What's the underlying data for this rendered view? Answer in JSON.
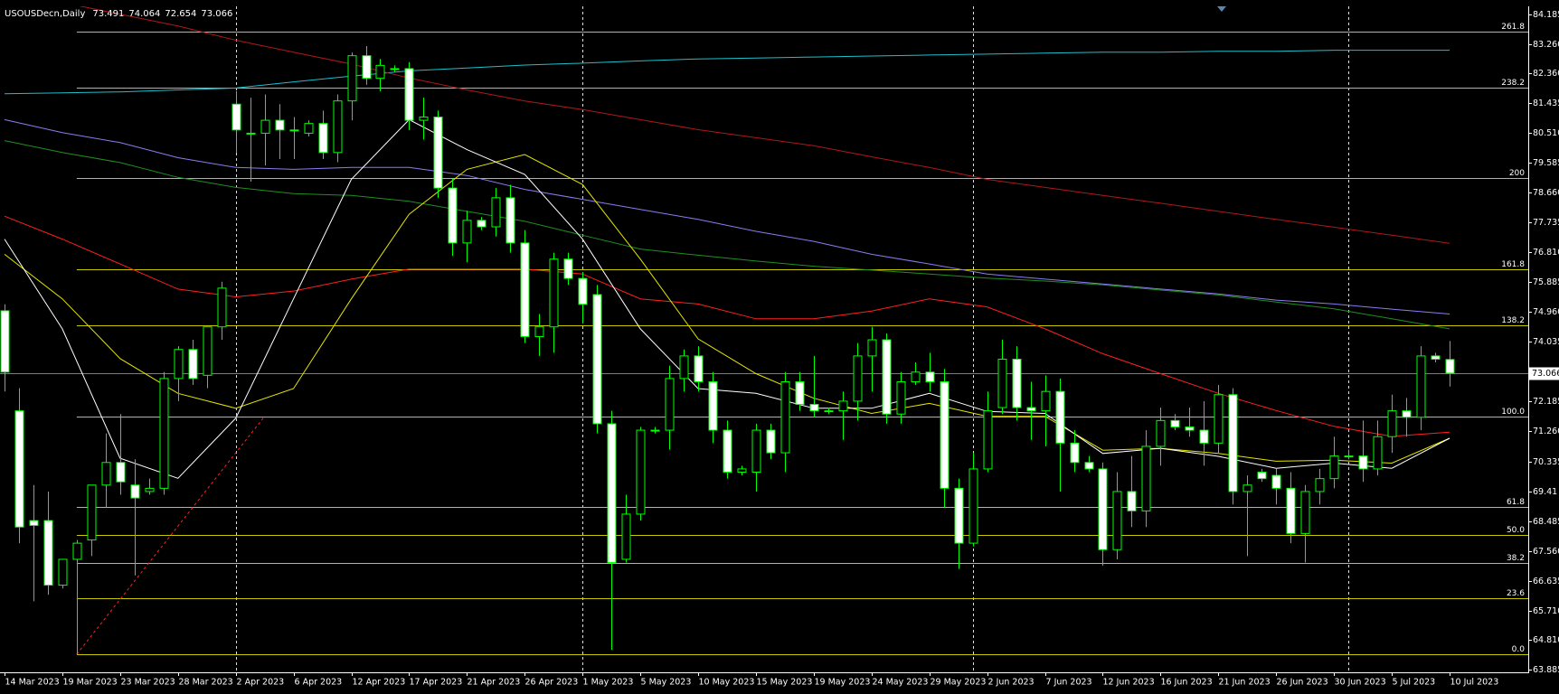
{
  "chart_data": {
    "type": "candlestick",
    "title": "USOUSDecn,Daily",
    "ylim": [
      63.8,
      84.43
    ],
    "yticks": [
      84.185,
      {
        "value": 83.26,
        "label": "83.260"
      },
      {
        "value": 82.36,
        "label": "82.360"
      },
      81.435,
      {
        "value": 80.51,
        "label": "80.510"
      },
      79.585,
      {
        "value": 78.66,
        "label": "78.660"
      },
      77.735,
      {
        "value": 76.81,
        "label": "76.810"
      },
      75.885,
      {
        "value": 74.96,
        "label": "74.960"
      },
      74.035,
      72.185,
      {
        "value": 71.26,
        "label": "71.260"
      },
      70.335,
      69.41,
      68.485,
      {
        "value": 67.56,
        "label": "67.560"
      },
      66.635,
      {
        "value": 65.71,
        "label": "65.710"
      },
      {
        "value": 64.81,
        "label": "64.810"
      },
      63.885
    ],
    "categories": [
      "14 Mar 2023",
      null,
      null,
      null,
      "19 Mar 2023",
      null,
      null,
      null,
      "23 Mar 2023",
      null,
      null,
      null,
      "28 Mar 2023",
      null,
      null,
      null,
      "2 Apr 2023",
      null,
      null,
      null,
      "6 Apr 2023",
      null,
      null,
      null,
      "12 Apr 2023",
      null,
      null,
      null,
      "17 Apr 2023",
      null,
      null,
      null,
      "21 Apr 2023",
      null,
      null,
      null,
      "26 Apr 2023",
      null,
      null,
      null,
      "1 May 2023",
      null,
      null,
      null,
      "5 May 2023",
      null,
      null,
      null,
      "10 May 2023",
      null,
      null,
      null,
      "15 May 2023",
      null,
      null,
      null,
      "19 May 2023",
      null,
      null,
      null,
      "24 May 2023",
      null,
      null,
      null,
      "29 May 2023",
      null,
      null,
      null,
      "2 Jun 2023",
      null,
      null,
      null,
      "7 Jun 2023",
      null,
      null,
      null,
      "12 Jun 2023",
      null,
      null,
      null,
      "16 Jun 2023",
      null,
      null,
      null,
      "21 Jun 2023",
      null,
      null,
      null,
      "26 Jun 2023",
      null,
      null,
      null,
      "30 Jun 2023",
      null,
      null,
      null,
      "5 Jul 2023",
      null,
      null,
      null,
      "10 Jul 2023"
    ],
    "open": [
      75.0,
      71.9,
      68.5,
      68.5,
      66.5,
      67.3,
      67.9,
      69.6,
      70.3,
      69.6,
      69.4,
      69.5,
      72.9,
      73.8,
      73.0,
      74.5,
      81.4,
      80.5,
      80.5,
      80.9,
      80.6,
      80.5,
      80.8,
      79.9,
      81.5,
      82.9,
      82.2,
      82.5,
      82.5,
      80.9,
      81.0,
      78.8,
      77.1,
      77.8,
      77.6,
      78.5,
      77.1,
      74.2,
      74.5,
      76.6,
      76.0,
      75.5,
      71.5,
      67.3,
      68.7,
      71.3,
      71.3,
      72.9,
      73.6,
      72.8,
      71.3,
      70.0,
      70.0,
      71.3,
      70.6,
      72.8,
      72.1,
      71.9,
      71.9,
      72.2,
      73.6,
      74.1,
      71.8,
      72.8,
      73.1,
      72.8,
      69.5,
      67.8,
      70.1,
      72.0,
      73.5,
      72.0,
      71.9,
      72.5,
      70.9,
      70.3,
      70.1,
      67.6,
      69.4,
      68.8,
      70.8,
      71.6,
      71.4,
      71.3,
      70.9,
      72.4,
      69.4,
      70.0,
      69.9,
      69.5,
      68.1,
      69.4,
      69.8,
      70.5,
      70.5,
      70.1,
      71.1,
      71.9,
      71.7,
      73.6,
      73.491
    ],
    "high": [
      75.2,
      72.6,
      69.6,
      69.4,
      67.3,
      67.9,
      69.6,
      71.2,
      71.8,
      70.4,
      69.8,
      73.1,
      73.9,
      74.1,
      74.5,
      75.9,
      81.8,
      81.6,
      81.7,
      81.4,
      81.0,
      80.9,
      81.2,
      81.7,
      83.0,
      83.2,
      82.8,
      82.6,
      82.7,
      81.6,
      81.2,
      79.1,
      78.1,
      77.9,
      78.8,
      78.9,
      77.5,
      74.9,
      76.8,
      76.8,
      76.2,
      75.8,
      71.9,
      69.3,
      71.4,
      71.4,
      73.3,
      73.8,
      73.9,
      73.1,
      71.6,
      70.2,
      71.5,
      71.5,
      73.1,
      73.1,
      73.6,
      72.0,
      72.5,
      74.0,
      74.5,
      74.3,
      73.1,
      73.4,
      73.7,
      73.2,
      69.8,
      70.6,
      72.5,
      74.1,
      73.9,
      72.8,
      73.0,
      72.9,
      71.3,
      70.5,
      70.3,
      70.0,
      70.5,
      71.3,
      72.0,
      71.8,
      72.0,
      72.2,
      72.7,
      72.6,
      69.9,
      70.1,
      70.1,
      70.0,
      69.6,
      70.1,
      71.1,
      70.7,
      71.6,
      71.6,
      72.4,
      72.3,
      73.9,
      73.7,
      74.064
    ],
    "low": [
      72.5,
      67.8,
      66.0,
      66.2,
      66.4,
      64.36,
      67.4,
      68.9,
      69.3,
      66.8,
      69.3,
      69.3,
      72.2,
      72.7,
      72.6,
      74.1,
      79.9,
      79.0,
      79.5,
      79.7,
      79.7,
      80.4,
      79.7,
      79.6,
      80.9,
      82.0,
      81.8,
      82.4,
      80.6,
      80.3,
      78.5,
      76.7,
      76.5,
      77.5,
      77.3,
      76.8,
      74.0,
      73.6,
      73.7,
      75.8,
      74.6,
      71.2,
      64.5,
      67.2,
      68.5,
      71.2,
      70.7,
      72.5,
      72.5,
      70.9,
      69.8,
      69.9,
      69.4,
      70.4,
      70.0,
      71.9,
      71.7,
      71.8,
      71.0,
      71.6,
      72.5,
      71.5,
      71.5,
      72.7,
      72.5,
      68.9,
      67.0,
      67.7,
      70.0,
      71.8,
      71.6,
      71.0,
      70.8,
      69.4,
      70.0,
      70.0,
      67.1,
      67.3,
      68.3,
      68.3,
      70.2,
      71.3,
      71.1,
      70.2,
      70.6,
      69.0,
      67.4,
      69.7,
      69.0,
      67.8,
      67.2,
      69.0,
      69.5,
      70.4,
      69.7,
      69.9,
      70.6,
      71.1,
      71.3,
      73.4,
      72.654
    ],
    "close": [
      73.1,
      68.3,
      68.35,
      66.5,
      67.3,
      67.8,
      69.6,
      70.3,
      69.7,
      69.2,
      69.5,
      72.9,
      73.8,
      72.9,
      74.5,
      75.7,
      80.6,
      80.5,
      80.9,
      80.6,
      80.6,
      80.8,
      79.9,
      81.5,
      82.9,
      82.2,
      82.6,
      82.5,
      80.9,
      81.0,
      78.8,
      77.1,
      77.8,
      77.6,
      78.5,
      77.1,
      74.2,
      74.5,
      76.6,
      76.0,
      75.2,
      71.5,
      67.2,
      68.7,
      71.3,
      71.3,
      72.9,
      73.6,
      72.8,
      71.3,
      70.0,
      70.1,
      71.3,
      70.6,
      72.8,
      72.1,
      71.9,
      71.9,
      72.2,
      73.6,
      74.1,
      71.8,
      72.8,
      73.1,
      72.8,
      69.5,
      67.8,
      70.1,
      71.9,
      73.5,
      72.0,
      71.9,
      72.5,
      70.9,
      70.3,
      70.1,
      67.6,
      69.4,
      68.8,
      70.8,
      71.6,
      71.4,
      71.3,
      70.9,
      72.4,
      69.4,
      69.6,
      69.8,
      69.5,
      68.1,
      69.4,
      69.8,
      70.5,
      70.5,
      70.1,
      71.1,
      71.9,
      71.7,
      73.6,
      73.5,
      73.066
    ],
    "up_color": "#000000",
    "down_color": "#ffffff",
    "wick_color": "#00ff00",
    "bid_line_color": "#6b7f99",
    "separators": [
      16,
      40,
      67,
      93
    ],
    "indicator_x": [
      0,
      4,
      8,
      12,
      16,
      20,
      24,
      28,
      32,
      36,
      40,
      44,
      48,
      52,
      56,
      60,
      64,
      68,
      72,
      76,
      80,
      84,
      88,
      92,
      96,
      100
    ],
    "lines": [
      {
        "color": "#1cc0cc",
        "values": [
          81.72,
          81.75,
          81.78,
          81.84,
          81.9,
          82.09,
          82.27,
          82.43,
          82.52,
          82.61,
          82.67,
          82.74,
          82.8,
          82.83,
          82.86,
          82.89,
          82.92,
          82.95,
          82.98,
          83.01,
          83.01,
          83.04,
          83.04,
          83.07,
          83.07,
          83.07
        ]
      },
      {
        "color": "#b01818",
        "values": [
          84.92,
          84.55,
          84.185,
          83.82,
          83.38,
          83.01,
          82.64,
          82.21,
          81.84,
          81.5,
          81.23,
          80.92,
          80.61,
          80.36,
          80.11,
          79.77,
          79.44,
          79.07,
          78.82,
          78.57,
          78.33,
          78.08,
          77.83,
          77.59,
          77.34,
          77.09
        ]
      },
      {
        "color": "#8a7cf0",
        "values": [
          80.92,
          80.52,
          80.21,
          79.74,
          79.44,
          79.38,
          79.44,
          79.44,
          79.19,
          78.76,
          78.45,
          78.14,
          77.83,
          77.46,
          77.15,
          76.75,
          76.45,
          76.14,
          75.98,
          75.83,
          75.67,
          75.52,
          75.33,
          75.21,
          75.05,
          74.9
        ]
      },
      {
        "color": "#1f8f1f",
        "values": [
          80.27,
          79.9,
          79.59,
          79.13,
          78.82,
          78.63,
          78.57,
          78.39,
          78.08,
          77.77,
          77.34,
          76.91,
          76.72,
          76.54,
          76.38,
          76.26,
          76.14,
          76.01,
          75.92,
          75.8,
          75.64,
          75.49,
          75.27,
          75.06,
          74.75,
          74.44
        ]
      },
      {
        "color": "#ff2020",
        "values": [
          77.93,
          77.22,
          76.45,
          75.67,
          75.43,
          75.61,
          75.98,
          76.29,
          76.29,
          76.29,
          76.14,
          75.37,
          75.21,
          74.75,
          74.75,
          74.99,
          75.37,
          75.12,
          74.44,
          73.67,
          73.05,
          72.44,
          71.91,
          71.42,
          71.11,
          71.24
        ]
      },
      {
        "color": "#e6e600",
        "values": [
          76.75,
          75.37,
          73.52,
          72.44,
          71.98,
          72.59,
          75.37,
          77.99,
          79.38,
          79.84,
          78.91,
          76.6,
          74.13,
          73.05,
          72.29,
          71.82,
          72.13,
          71.73,
          71.73,
          70.68,
          70.74,
          70.58,
          70.34,
          70.37,
          70.28,
          71.05
        ]
      },
      {
        "color": "#ffffff",
        "values": [
          77.22,
          74.44,
          70.43,
          69.81,
          71.67,
          75.37,
          79.07,
          80.92,
          79.99,
          79.22,
          77.22,
          74.44,
          72.59,
          72.44,
          71.98,
          71.98,
          72.44,
          71.88,
          71.82,
          70.58,
          70.74,
          70.49,
          70.12,
          70.28,
          70.12,
          71.05
        ]
      }
    ],
    "fibonacci": {
      "color": "#c8c800",
      "trend_color": "#ff2020",
      "x": [
        5,
        18
      ],
      "levels": [
        {
          "value": 64.36,
          "label": "0.0"
        },
        {
          "value": 66.1,
          "label": "23.6"
        },
        {
          "value": 67.18,
          "label": "38.2"
        },
        {
          "value": 68.045,
          "label": "50.0"
        },
        {
          "value": 68.91,
          "label": "61.8"
        },
        {
          "value": 71.73,
          "label": "100.0"
        },
        {
          "value": 74.545,
          "label": "138.2"
        },
        {
          "value": 76.28,
          "label": "161.8"
        },
        {
          "value": 79.1,
          "label": "200"
        },
        {
          "value": 81.91,
          "label": "238.2"
        },
        {
          "value": 83.65,
          "label": "261.8"
        }
      ]
    }
  }
}
